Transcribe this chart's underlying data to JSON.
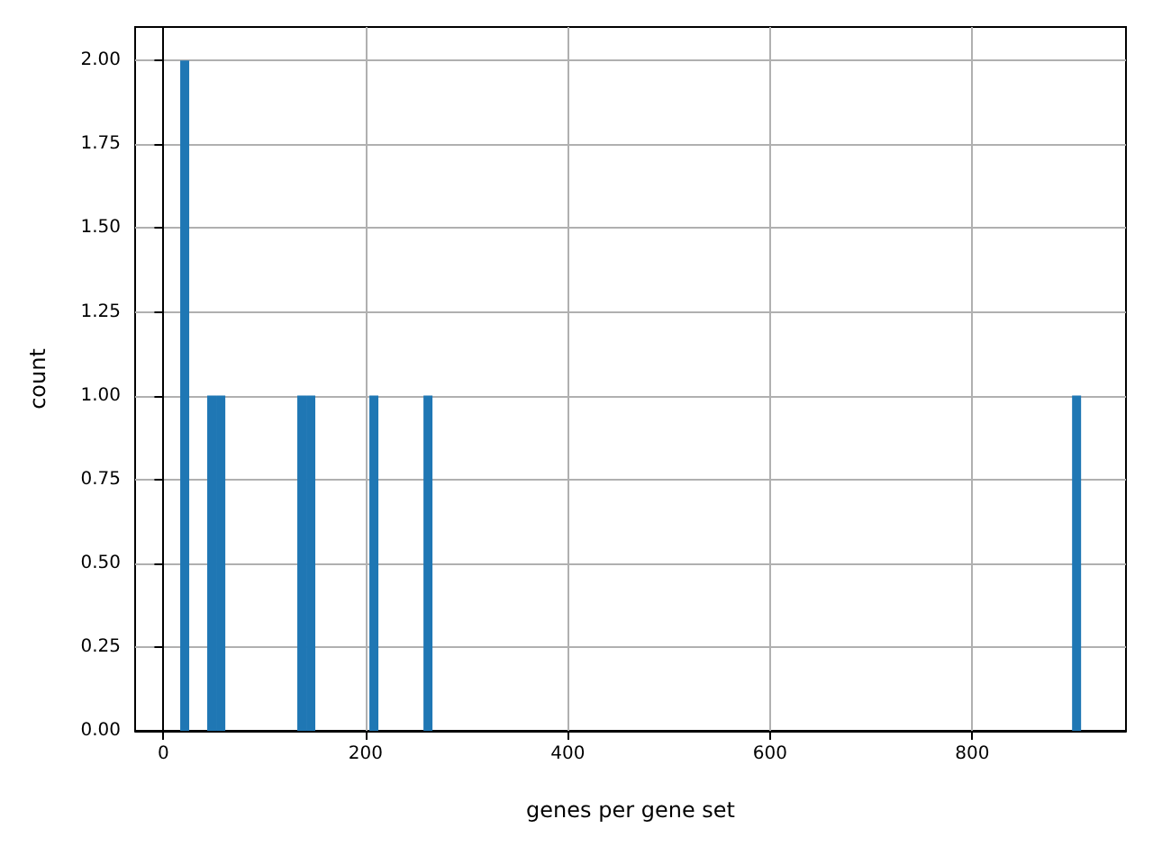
{
  "chart_data": {
    "type": "histogram",
    "xlabel": "genes per gene set",
    "ylabel": "count",
    "color": "#1f77b4",
    "bins": [
      16.6,
      25.5,
      34.4,
      43.3,
      52.2,
      61.2,
      70.1,
      79.0,
      87.9,
      96.8,
      105.7,
      114.6,
      123.5,
      132.4,
      141.3,
      150.2,
      159.2,
      168.1,
      177.0,
      185.9,
      194.8,
      203.7,
      212.6,
      221.5,
      230.4,
      239.4,
      248.3,
      257.2,
      266.1,
      275.0,
      283.9,
      292.8,
      301.7,
      310.6,
      319.5,
      328.5,
      337.4,
      346.3,
      355.2,
      364.1,
      373.0,
      381.9,
      390.8,
      399.7,
      408.6,
      417.6,
      426.5,
      435.4,
      444.3,
      453.2,
      462.1,
      471.0,
      479.9,
      488.8,
      497.7,
      506.7,
      515.6,
      524.5,
      533.4,
      542.3,
      551.2,
      560.1,
      569.0,
      577.9,
      586.8,
      595.8,
      604.7,
      613.6,
      622.5,
      631.4,
      640.3,
      649.2,
      658.1,
      667.0,
      675.9,
      684.9,
      693.8,
      702.7,
      711.6,
      720.5,
      729.4,
      738.3,
      747.2,
      756.1,
      765.0,
      774.0,
      782.9,
      791.8,
      800.7,
      809.6,
      818.5,
      827.4,
      836.3,
      845.2,
      854.1,
      863.1,
      872.0,
      880.9,
      889.8,
      898.7,
      907.6
    ],
    "values": [
      2,
      0,
      0,
      1,
      1,
      0,
      0,
      0,
      0,
      0,
      0,
      0,
      0,
      1,
      1,
      0,
      0,
      0,
      0,
      0,
      0,
      1,
      0,
      0,
      0,
      0,
      0,
      1,
      0,
      0,
      0,
      0,
      0,
      0,
      0,
      0,
      0,
      0,
      0,
      0,
      0,
      0,
      0,
      0,
      0,
      0,
      0,
      0,
      0,
      0,
      0,
      0,
      0,
      0,
      0,
      0,
      0,
      0,
      0,
      0,
      0,
      0,
      0,
      0,
      0,
      0,
      0,
      0,
      0,
      0,
      0,
      0,
      0,
      0,
      0,
      0,
      0,
      0,
      0,
      0,
      0,
      0,
      0,
      0,
      0,
      0,
      0,
      0,
      0,
      0,
      0,
      0,
      0,
      0,
      0,
      0,
      0,
      0,
      0,
      1
    ],
    "xlim": [
      -28,
      952
    ],
    "xticks": [
      0,
      200,
      400,
      600,
      800
    ],
    "ylim": [
      0,
      2.1
    ],
    "yticks": [
      {
        "value": 0,
        "label": "0.00"
      },
      {
        "value": 0.25,
        "label": "0.25"
      },
      {
        "value": 0.5,
        "label": "0.50"
      },
      {
        "value": 0.75,
        "label": "0.75"
      },
      {
        "value": 1,
        "label": "1.00"
      },
      {
        "value": 1.25,
        "label": "1.25"
      },
      {
        "value": 1.5,
        "label": "1.50"
      },
      {
        "value": 1.75,
        "label": "1.75"
      },
      {
        "value": 2,
        "label": "2.00"
      }
    ],
    "grid": true
  }
}
